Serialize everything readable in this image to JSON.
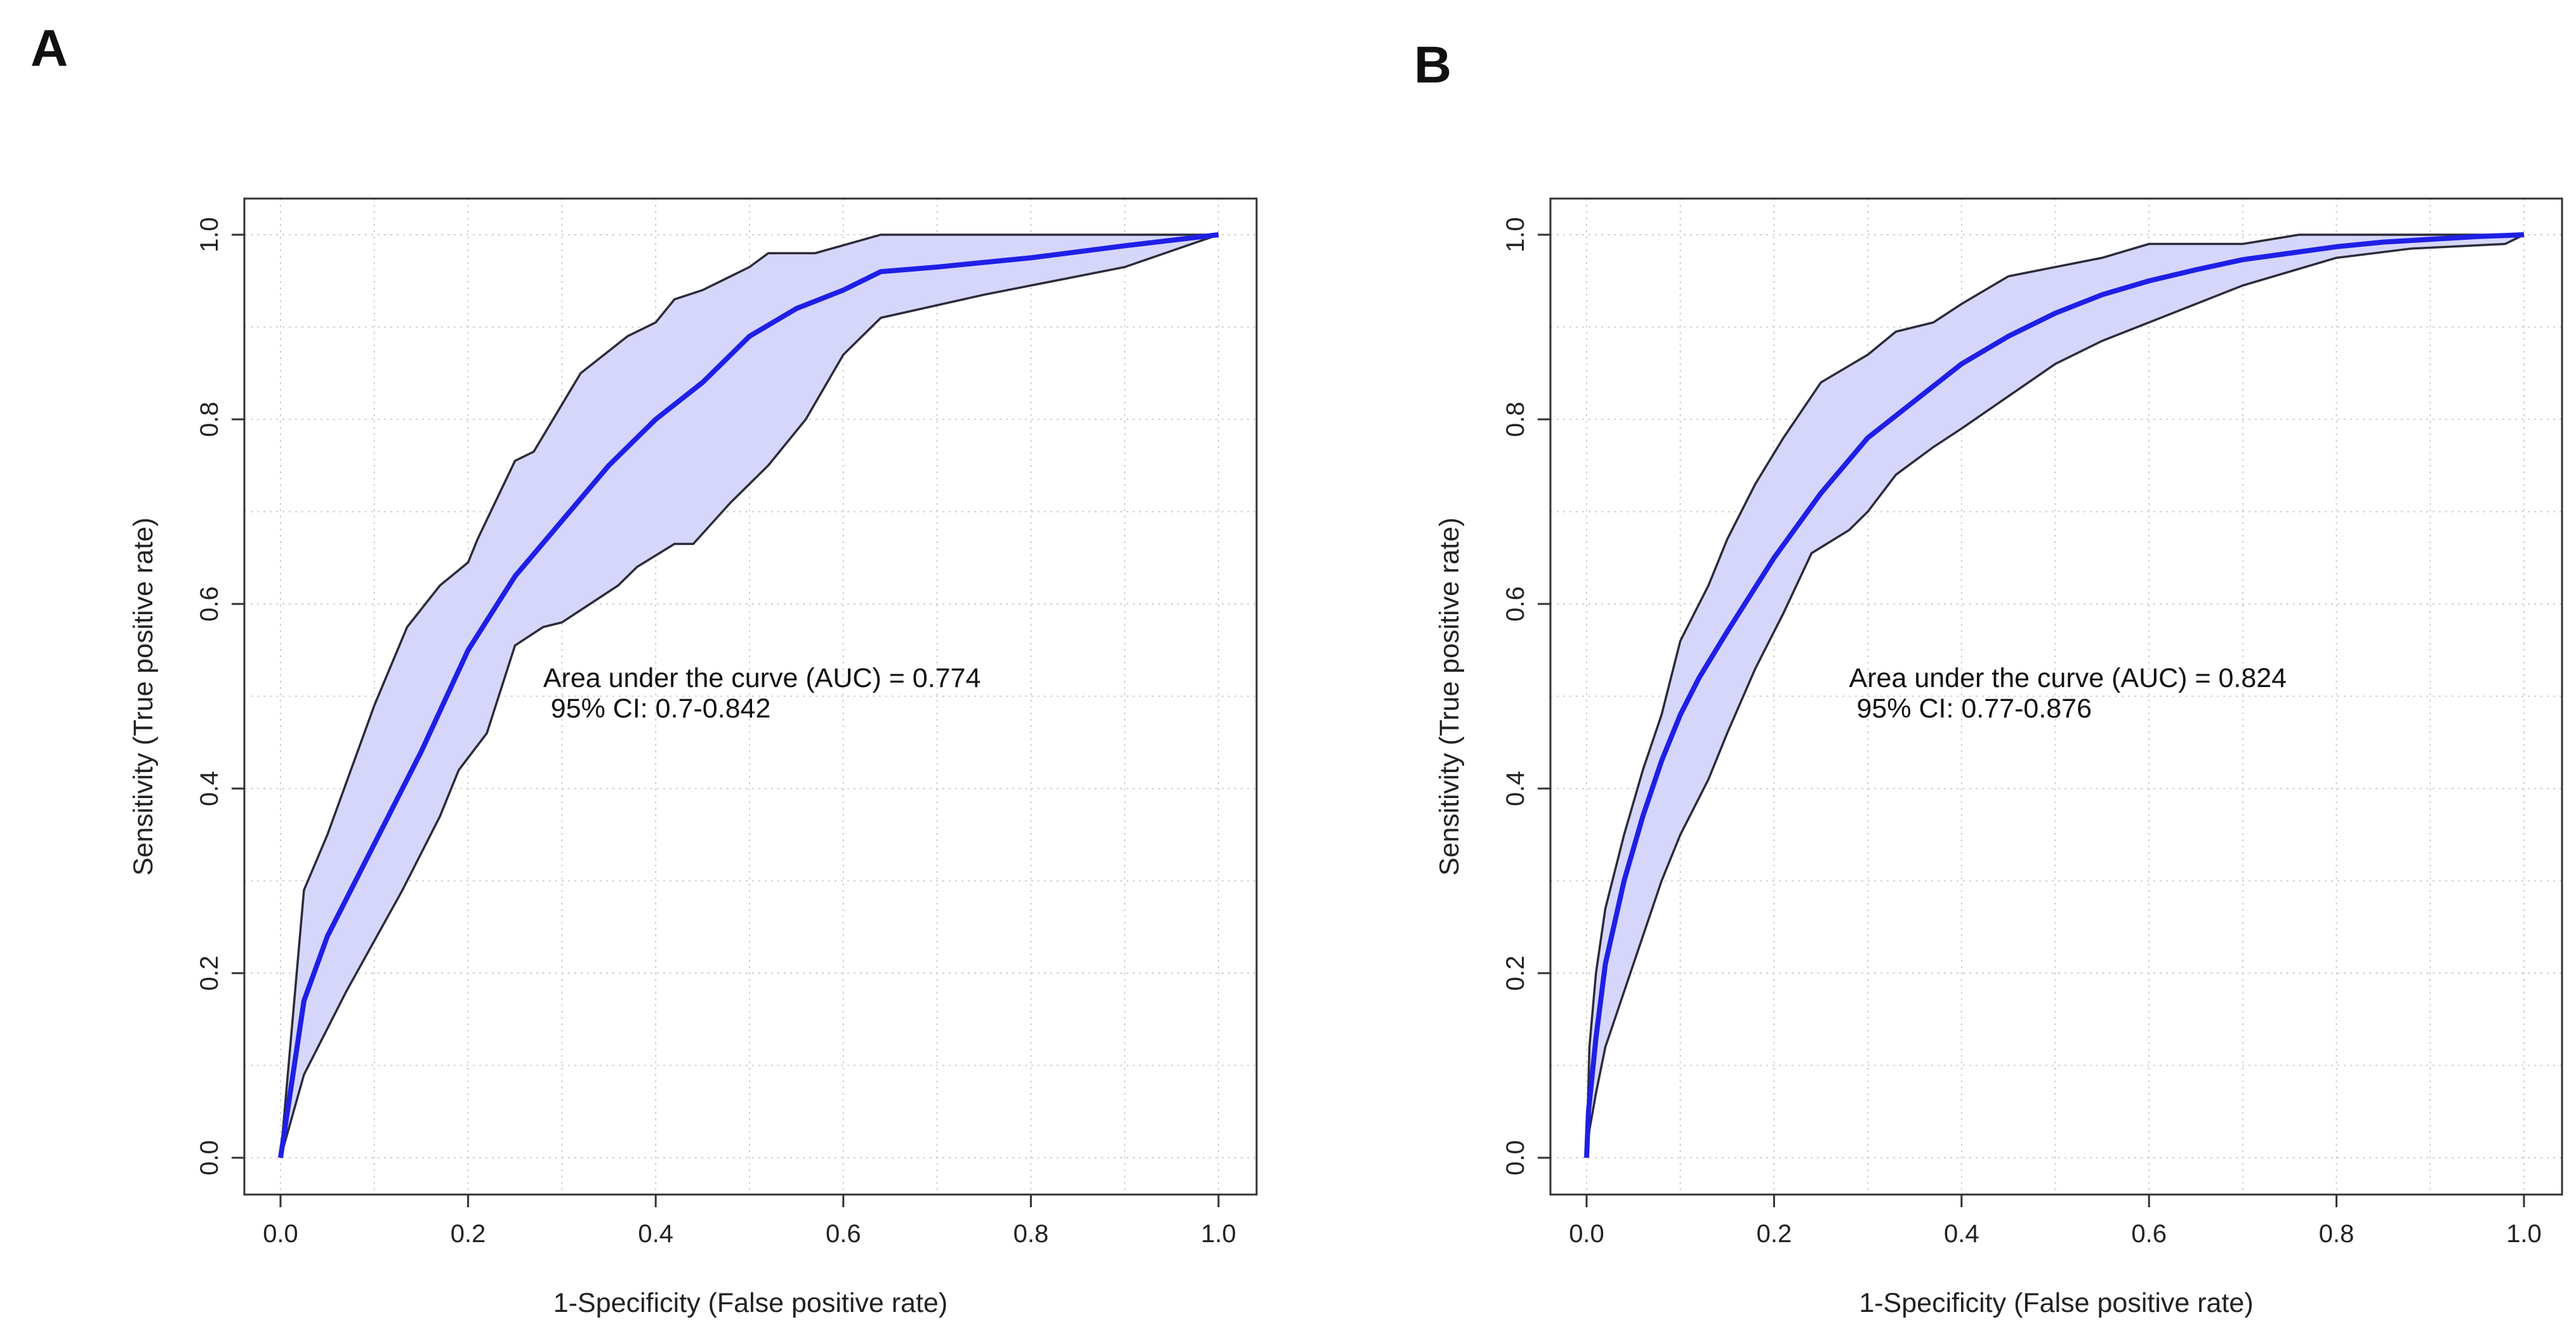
{
  "panels": [
    "A",
    "B"
  ],
  "colors": {
    "roc_line": "#1f1fe6",
    "ci_fill": "#d6d6fa",
    "ci_edge": "#2b2b3a",
    "grid": "#cfcfcf",
    "frame": "#333333"
  },
  "chart_data": [
    {
      "type": "line",
      "title": "",
      "xlabel": "1-Specificity (False positive rate)",
      "ylabel": "Sensitivity (True positive rate)",
      "xlim": [
        0.0,
        1.0
      ],
      "ylim": [
        0.0,
        1.0
      ],
      "xticks": [
        "0.0",
        "0.2",
        "0.4",
        "0.6",
        "0.8",
        "1.0"
      ],
      "yticks": [
        "0.0",
        "0.2",
        "0.4",
        "0.6",
        "0.8",
        "1.0"
      ],
      "grid": true,
      "annotation": [
        "Area under the curve (AUC) = 0.774",
        " 95% CI: 0.7-0.842"
      ],
      "annotation_pos": [
        0.28,
        0.51
      ],
      "roc": {
        "x": [
          0,
          0.025,
          0.05,
          0.1,
          0.15,
          0.2,
          0.25,
          0.3,
          0.35,
          0.4,
          0.45,
          0.5,
          0.55,
          0.6,
          0.64,
          0.7,
          0.8,
          0.9,
          1.0
        ],
        "y": [
          0,
          0.17,
          0.24,
          0.34,
          0.44,
          0.55,
          0.63,
          0.69,
          0.75,
          0.8,
          0.84,
          0.89,
          0.92,
          0.94,
          0.96,
          0.965,
          0.975,
          0.988,
          1.0
        ]
      },
      "ci_upper": {
        "x": [
          0,
          0.025,
          0.05,
          0.1,
          0.135,
          0.17,
          0.2,
          0.21,
          0.25,
          0.27,
          0.32,
          0.37,
          0.4,
          0.42,
          0.45,
          0.5,
          0.52,
          0.57,
          0.64,
          0.7,
          0.8,
          1.0
        ],
        "y": [
          0,
          0.29,
          0.35,
          0.49,
          0.575,
          0.62,
          0.645,
          0.67,
          0.755,
          0.765,
          0.85,
          0.89,
          0.905,
          0.93,
          0.94,
          0.965,
          0.98,
          0.98,
          1.0,
          1.0,
          1.0,
          1.0
        ]
      },
      "ci_lower": {
        "x": [
          0,
          0.025,
          0.07,
          0.13,
          0.17,
          0.19,
          0.22,
          0.25,
          0.28,
          0.3,
          0.33,
          0.36,
          0.38,
          0.42,
          0.44,
          0.48,
          0.52,
          0.56,
          0.6,
          0.64,
          0.75,
          0.9,
          1.0
        ],
        "y": [
          0,
          0.09,
          0.18,
          0.29,
          0.37,
          0.42,
          0.46,
          0.555,
          0.575,
          0.58,
          0.6,
          0.62,
          0.64,
          0.665,
          0.665,
          0.71,
          0.75,
          0.8,
          0.87,
          0.91,
          0.935,
          0.965,
          1.0
        ]
      }
    },
    {
      "type": "line",
      "title": "",
      "xlabel": "1-Specificity (False positive rate)",
      "ylabel": "Sensitivity (True positive rate)",
      "xlim": [
        0.0,
        1.0
      ],
      "ylim": [
        0.0,
        1.0
      ],
      "xticks": [
        "0.0",
        "0.2",
        "0.4",
        "0.6",
        "0.8",
        "1.0"
      ],
      "yticks": [
        "0.0",
        "0.2",
        "0.4",
        "0.6",
        "0.8",
        "1.0"
      ],
      "grid": true,
      "annotation": [
        "Area under the curve (AUC) = 0.824",
        " 95% CI: 0.77-0.876"
      ],
      "annotation_pos": [
        0.28,
        0.51
      ],
      "roc": {
        "x": [
          0,
          0.002,
          0.01,
          0.02,
          0.04,
          0.06,
          0.08,
          0.1,
          0.12,
          0.15,
          0.2,
          0.25,
          0.3,
          0.35,
          0.4,
          0.45,
          0.5,
          0.55,
          0.6,
          0.65,
          0.7,
          0.75,
          0.8,
          0.85,
          0.9,
          0.95,
          1.0
        ],
        "y": [
          0,
          0.05,
          0.13,
          0.21,
          0.3,
          0.37,
          0.43,
          0.48,
          0.52,
          0.57,
          0.65,
          0.72,
          0.78,
          0.82,
          0.86,
          0.89,
          0.915,
          0.935,
          0.95,
          0.962,
          0.973,
          0.98,
          0.987,
          0.992,
          0.995,
          0.998,
          1.0
        ]
      },
      "ci_upper": {
        "x": [
          0,
          0.003,
          0.01,
          0.02,
          0.04,
          0.06,
          0.08,
          0.1,
          0.13,
          0.15,
          0.18,
          0.21,
          0.25,
          0.3,
          0.33,
          0.37,
          0.4,
          0.45,
          0.5,
          0.55,
          0.6,
          0.65,
          0.7,
          0.76,
          0.8,
          0.9,
          1.0
        ],
        "y": [
          0,
          0.12,
          0.2,
          0.27,
          0.35,
          0.42,
          0.48,
          0.56,
          0.62,
          0.67,
          0.73,
          0.78,
          0.84,
          0.87,
          0.895,
          0.905,
          0.925,
          0.955,
          0.965,
          0.975,
          0.99,
          0.99,
          0.99,
          1.0,
          1.0,
          1.0,
          1.0
        ]
      },
      "ci_lower": {
        "x": [
          0,
          0.003,
          0.01,
          0.02,
          0.04,
          0.06,
          0.08,
          0.1,
          0.13,
          0.15,
          0.18,
          0.21,
          0.24,
          0.28,
          0.3,
          0.33,
          0.37,
          0.4,
          0.45,
          0.5,
          0.55,
          0.6,
          0.65,
          0.7,
          0.75,
          0.8,
          0.88,
          0.98,
          1.0
        ],
        "y": [
          0,
          0.03,
          0.07,
          0.12,
          0.18,
          0.24,
          0.3,
          0.35,
          0.41,
          0.46,
          0.53,
          0.59,
          0.655,
          0.68,
          0.7,
          0.74,
          0.77,
          0.79,
          0.825,
          0.86,
          0.885,
          0.905,
          0.925,
          0.945,
          0.96,
          0.975,
          0.985,
          0.99,
          1.0
        ]
      }
    }
  ]
}
